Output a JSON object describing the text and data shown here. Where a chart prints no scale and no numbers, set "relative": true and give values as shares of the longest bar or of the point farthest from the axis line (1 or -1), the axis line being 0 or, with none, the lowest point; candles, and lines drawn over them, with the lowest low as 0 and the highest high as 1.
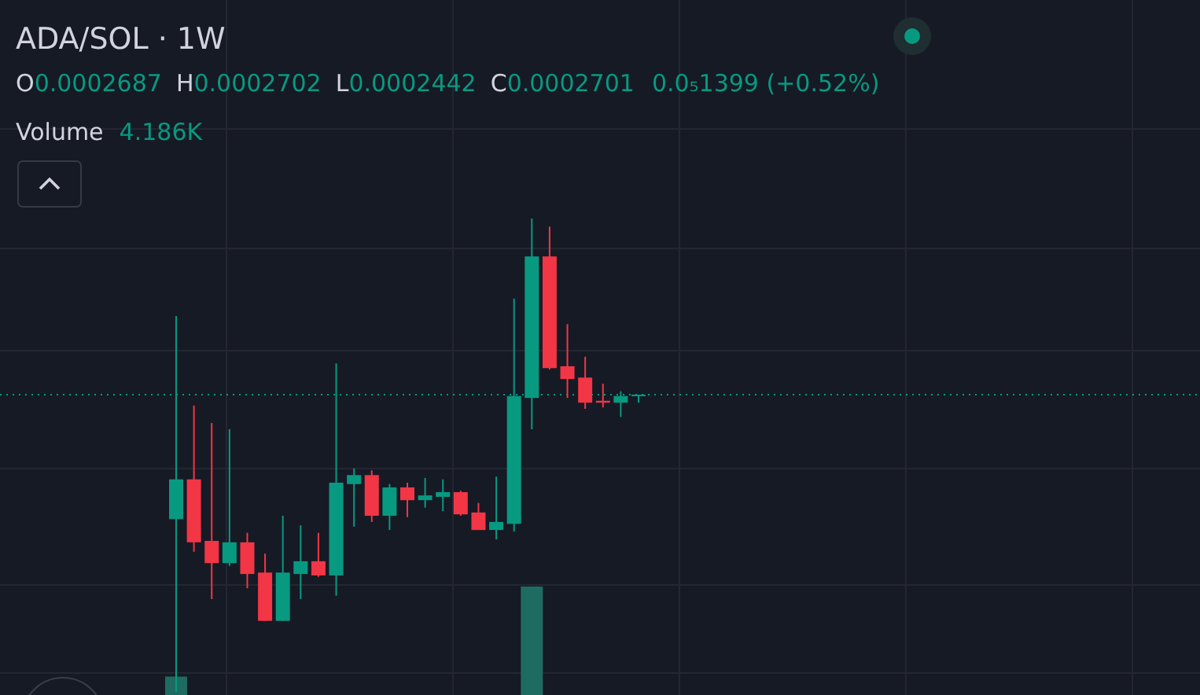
{
  "chart_data": [
    {
      "type": "candlestick",
      "title": "ADA/SOL · 1W",
      "relative": true,
      "grid": true,
      "annotations": [
        "O0.0002687",
        "H0.0002702",
        "L0.0002442",
        "C0.0002701",
        "0.0₅1399 (+0.52%)",
        "Volume 4.186K"
      ],
      "categories": [
        null,
        null,
        null,
        null,
        null,
        null,
        null,
        null,
        null,
        null,
        null,
        null,
        null,
        null,
        null,
        null,
        null,
        null,
        null,
        null,
        null,
        null,
        null,
        null,
        null,
        null,
        null
      ],
      "ohlc": [
        [
          0.365,
          0.794,
          0,
          0.449
        ],
        [
          0.449,
          0.605,
          0.296,
          0.316
        ],
        [
          0.319,
          0.568,
          0.196,
          0.272
        ],
        [
          0.272,
          0.555,
          0.266,
          0.316
        ],
        [
          0.316,
          0.336,
          0.219,
          0.249
        ],
        [
          0.252,
          0.292,
          0.15,
          0.15
        ],
        [
          0.15,
          0.372,
          0.15,
          0.252
        ],
        [
          0.249,
          0.352,
          0.196,
          0.276
        ],
        [
          0.276,
          0.336,
          0.243,
          0.246
        ],
        [
          0.246,
          0.694,
          0.203,
          0.442
        ],
        [
          0.439,
          0.472,
          0.349,
          0.458
        ],
        [
          0.458,
          0.468,
          0.359,
          0.372
        ],
        [
          0.372,
          0.439,
          0.342,
          0.432
        ],
        [
          0.432,
          0.442,
          0.369,
          0.405
        ],
        [
          0.405,
          0.452,
          0.389,
          0.415
        ],
        [
          0.412,
          0.449,
          0.382,
          0.422
        ],
        [
          0.422,
          0.425,
          0.372,
          0.375
        ],
        [
          0.379,
          0.399,
          0.342,
          0.342
        ],
        [
          0.342,
          0.455,
          0.322,
          0.359
        ],
        [
          0.355,
          0.831,
          0.339,
          0.625
        ],
        [
          0.621,
          1,
          0.555,
          0.92
        ],
        [
          0.92,
          0.983,
          0.681,
          0.684
        ],
        [
          0.688,
          0.777,
          0.621,
          0.661
        ],
        [
          0.664,
          0.708,
          0.598,
          0.611
        ],
        [
          0.615,
          0.651,
          0.601,
          0.611
        ],
        [
          0.611,
          0.635,
          0.581,
          0.625
        ],
        [
          0.625,
          0.628,
          0.611,
          0.628
        ]
      ],
      "colors": [
        "#089981",
        "#f23645",
        "#f23645",
        "#089981",
        "#f23645",
        "#f23645",
        "#089981",
        "#089981",
        "#f23645",
        "#089981",
        "#089981",
        "#f23645",
        "#089981",
        "#f23645",
        "#089981",
        "#089981",
        "#f23645",
        "#f23645",
        "#089981",
        "#089981",
        "#089981",
        "#f23645",
        "#f23645",
        "#f23645",
        "#f23645",
        "#089981",
        "#089981"
      ],
      "ref_lines": [
        {
          "axis": "y",
          "value": 0.628,
          "color": "#089981",
          "line_style": "dotted"
        }
      ]
    },
    {
      "type": "bar",
      "relative": true,
      "color": "#1e6b61",
      "categories": [
        null,
        null,
        null,
        null,
        null,
        null,
        null,
        null,
        null,
        null,
        null,
        null,
        null,
        null,
        null,
        null,
        null,
        null,
        null,
        null,
        null,
        null,
        null,
        null,
        null,
        null,
        null
      ],
      "values": [
        0.17,
        null,
        null,
        null,
        null,
        null,
        null,
        null,
        null,
        null,
        null,
        null,
        null,
        null,
        null,
        null,
        null,
        null,
        null,
        null,
        1,
        null,
        null,
        null,
        null,
        null,
        null
      ]
    }
  ]
}
